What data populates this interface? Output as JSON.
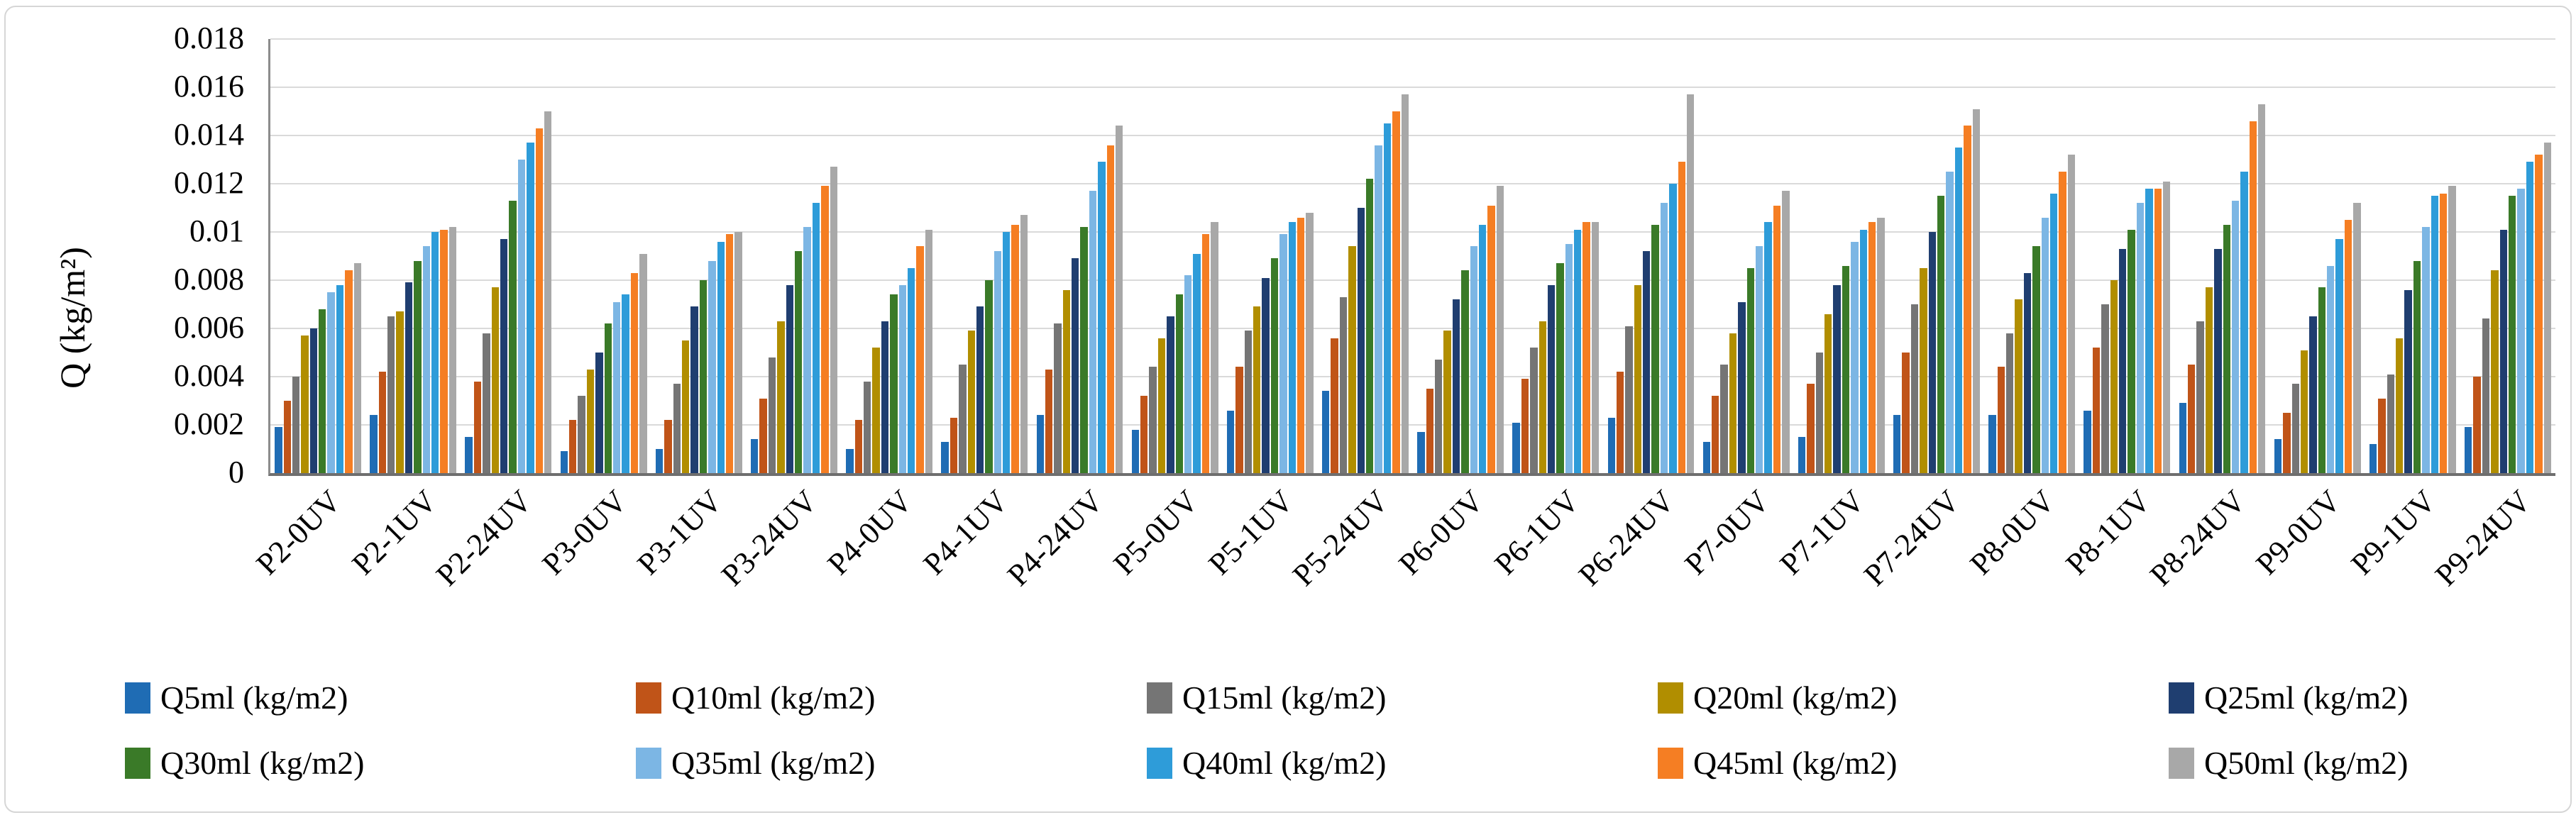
{
  "chart_data": {
    "type": "bar",
    "title": "",
    "grid": true,
    "legend_position": "bottom",
    "y_axis": {
      "label": "Q (kg/m²)",
      "min": 0,
      "max": 0.018,
      "tick_step": 0.002,
      "ticks": [
        "0.018",
        "0.016",
        "0.014",
        "0.012",
        "0.01",
        "0.008",
        "0.006",
        "0.004",
        "0.002",
        "0"
      ]
    },
    "categories": [
      "P2-0UV",
      "P2-1UV",
      "P2-24UV",
      "P3-0UV",
      "P3-1UV",
      "P3-24UV",
      "P4-0UV",
      "P4-1UV",
      "P4-24UV",
      "P5-0UV",
      "P5-1UV",
      "P5-24UV",
      "P6-0UV",
      "P6-1UV",
      "P6-24UV",
      "P7-0UV",
      "P7-1UV",
      "P7-24UV",
      "P8-0UV",
      "P8-1UV",
      "P8-24UV",
      "P9-0UV",
      "P9-1UV",
      "P9-24UV"
    ],
    "series": [
      {
        "name": "Q5ml (kg/m2)",
        "color": "#1F6CB4",
        "values": [
          0.0019,
          0.0024,
          0.0015,
          0.0009,
          0.001,
          0.0014,
          0.001,
          0.0013,
          0.0024,
          0.0018,
          0.0026,
          0.0034,
          0.0017,
          0.0021,
          0.0023,
          0.0013,
          0.0015,
          0.0024,
          0.0024,
          0.0026,
          0.0029,
          0.0014,
          0.0012,
          0.0019
        ]
      },
      {
        "name": "Q10ml (kg/m2)",
        "color": "#C05418",
        "values": [
          0.003,
          0.0042,
          0.0038,
          0.0022,
          0.0022,
          0.0031,
          0.0022,
          0.0023,
          0.0043,
          0.0032,
          0.0044,
          0.0056,
          0.0035,
          0.0039,
          0.0042,
          0.0032,
          0.0037,
          0.005,
          0.0044,
          0.0052,
          0.0045,
          0.0025,
          0.0031,
          0.004
        ]
      },
      {
        "name": "Q15ml (kg/m2)",
        "color": "#757575",
        "values": [
          0.004,
          0.0065,
          0.0058,
          0.0032,
          0.0037,
          0.0048,
          0.0038,
          0.0045,
          0.0062,
          0.0044,
          0.0059,
          0.0073,
          0.0047,
          0.0052,
          0.0061,
          0.0045,
          0.005,
          0.007,
          0.0058,
          0.007,
          0.0063,
          0.0037,
          0.0041,
          0.0064
        ]
      },
      {
        "name": "Q20ml (kg/m2)",
        "color": "#B18E00",
        "values": [
          0.0057,
          0.0067,
          0.0077,
          0.0043,
          0.0055,
          0.0063,
          0.0052,
          0.0059,
          0.0076,
          0.0056,
          0.0069,
          0.0094,
          0.0059,
          0.0063,
          0.0078,
          0.0058,
          0.0066,
          0.0085,
          0.0072,
          0.008,
          0.0077,
          0.0051,
          0.0056,
          0.0084
        ]
      },
      {
        "name": "Q25ml (kg/m2)",
        "color": "#1F3E70",
        "values": [
          0.006,
          0.0079,
          0.0097,
          0.005,
          0.0069,
          0.0078,
          0.0063,
          0.0069,
          0.0089,
          0.0065,
          0.0081,
          0.011,
          0.0072,
          0.0078,
          0.0092,
          0.0071,
          0.0078,
          0.01,
          0.0083,
          0.0093,
          0.0093,
          0.0065,
          0.0076,
          0.0101
        ]
      },
      {
        "name": "Q30ml (kg/m2)",
        "color": "#3A7A28",
        "values": [
          0.0068,
          0.0088,
          0.0113,
          0.0062,
          0.008,
          0.0092,
          0.0074,
          0.008,
          0.0102,
          0.0074,
          0.0089,
          0.0122,
          0.0084,
          0.0087,
          0.0103,
          0.0085,
          0.0086,
          0.0115,
          0.0094,
          0.0101,
          0.0103,
          0.0077,
          0.0088,
          0.0115
        ]
      },
      {
        "name": "Q35ml (kg/m2)",
        "color": "#7CB6E4",
        "values": [
          0.0075,
          0.0094,
          0.013,
          0.0071,
          0.0088,
          0.0102,
          0.0078,
          0.0092,
          0.0117,
          0.0082,
          0.0099,
          0.0136,
          0.0094,
          0.0095,
          0.0112,
          0.0094,
          0.0096,
          0.0125,
          0.0106,
          0.0112,
          0.0113,
          0.0086,
          0.0102,
          0.0118
        ]
      },
      {
        "name": "Q40ml (kg/m2)",
        "color": "#2E9CD9",
        "values": [
          0.0078,
          0.01,
          0.0137,
          0.0074,
          0.0096,
          0.0112,
          0.0085,
          0.01,
          0.0129,
          0.0091,
          0.0104,
          0.0145,
          0.0103,
          0.0101,
          0.012,
          0.0104,
          0.0101,
          0.0135,
          0.0116,
          0.0118,
          0.0125,
          0.0097,
          0.0115,
          0.0129
        ]
      },
      {
        "name": "Q45ml (kg/m2)",
        "color": "#F57E23",
        "values": [
          0.0084,
          0.0101,
          0.0143,
          0.0083,
          0.0099,
          0.0119,
          0.0094,
          0.0103,
          0.0136,
          0.0099,
          0.0106,
          0.015,
          0.0111,
          0.0104,
          0.0129,
          0.0111,
          0.0104,
          0.0144,
          0.0125,
          0.0118,
          0.0146,
          0.0105,
          0.0116,
          0.0132
        ]
      },
      {
        "name": "Q50ml (kg/m2)",
        "color": "#A8A8A8",
        "values": [
          0.0087,
          0.0102,
          0.015,
          0.0091,
          0.01,
          0.0127,
          0.0101,
          0.0107,
          0.0144,
          0.0104,
          0.0108,
          0.0157,
          0.0119,
          0.0104,
          0.0157,
          0.0117,
          0.0106,
          0.0151,
          0.0132,
          0.0121,
          0.0153,
          0.0112,
          0.0119,
          0.0137
        ]
      }
    ],
    "colors": {
      "gridline": "#DADADA",
      "axis_line": "#6E6E6E",
      "y_axis_line": "#8C8C8C",
      "frame_border": "#D6D6D6"
    }
  }
}
